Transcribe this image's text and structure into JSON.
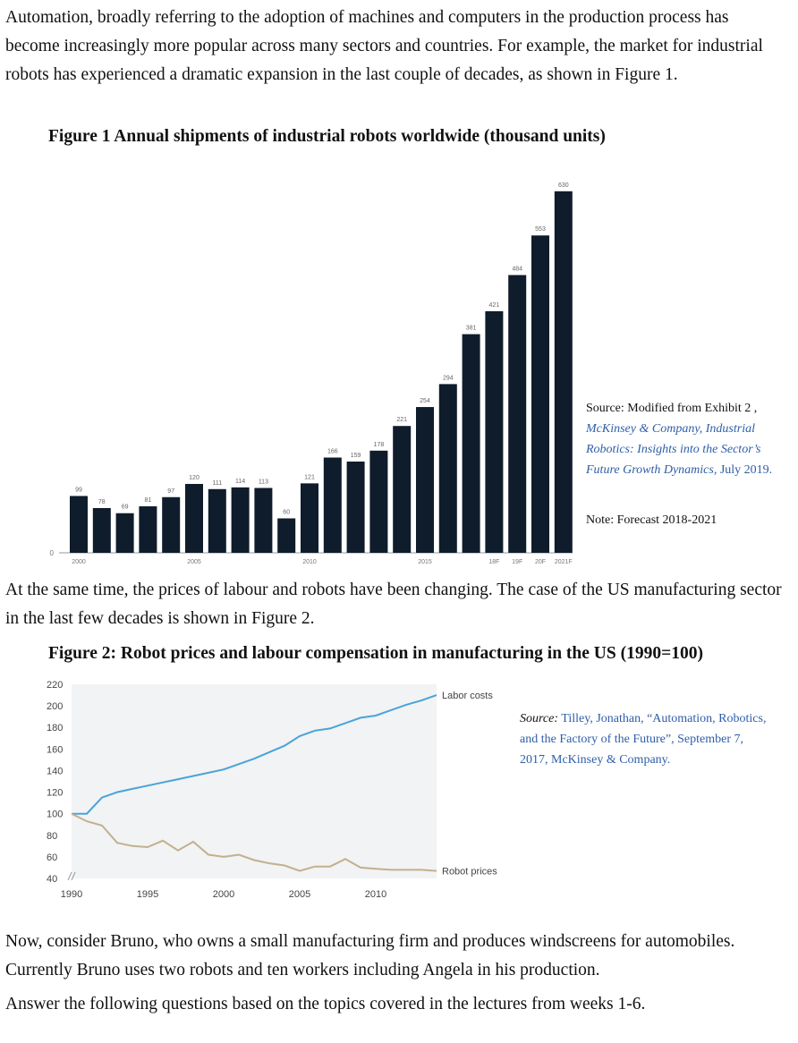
{
  "paragraphs": {
    "intro": "Automation, broadly referring to the adoption of machines and computers in the production process has become increasingly more popular across many sectors and countries. For example, the market for industrial robots has experienced a dramatic expansion in the last couple of decades, as shown in Figure 1.",
    "middle": "At the same time, the prices of labour and robots have been changing. The case of the US manufacturing sector in the last few decades is shown in Figure 2.",
    "bruno": "Now, consider Bruno, who owns a small manufacturing firm and produces windscreens for automobiles. Currently Bruno uses two robots and ten workers including Angela in his production.",
    "question": "Answer the following questions based on the topics covered in the lectures from weeks 1-6."
  },
  "figure1": {
    "title": "Figure 1 Annual shipments of industrial robots worldwide (thousand units)",
    "source_prefix": "Source: Modified from Exhibit 2 ,",
    "source_link": "McKinsey & Company, Industrial Robotics: Insights into the Sector’s Future Growth Dynamics,",
    "source_date": "July 2019.",
    "note": "Note: Forecast 2018-2021"
  },
  "figure2": {
    "title": "Figure 2: Robot prices and labour compensation in manufacturing in the US (1990=100)",
    "source_label": "Source:",
    "source_text": "Tilley, Jonathan, “Automation, Robotics, and the Factory of the Future”, September 7, 2017, McKinsey & Company."
  },
  "chart_data": [
    {
      "type": "bar",
      "title": "Figure 1 Annual shipments of industrial robots worldwide (thousand units)",
      "categories": [
        "2000",
        "2001",
        "2002",
        "2003",
        "2004",
        "2005",
        "2006",
        "2007",
        "2008",
        "2009",
        "2010",
        "2011",
        "2012",
        "2013",
        "2014",
        "2015",
        "2016",
        "2017",
        "18F",
        "19F",
        "20F",
        "2021F"
      ],
      "values": [
        99,
        78,
        69,
        81,
        97,
        120,
        111,
        114,
        113,
        60,
        121,
        166,
        159,
        178,
        221,
        254,
        294,
        381,
        421,
        484,
        553,
        630
      ],
      "x_tick_labels": [
        {
          "index": 0,
          "label": "2000"
        },
        {
          "index": 5,
          "label": "2005"
        },
        {
          "index": 10,
          "label": "2010"
        },
        {
          "index": 15,
          "label": "2015"
        },
        {
          "index": 18,
          "label": "18F"
        },
        {
          "index": 19,
          "label": "19F"
        },
        {
          "index": 20,
          "label": "20F"
        },
        {
          "index": 21,
          "label": "2021F"
        }
      ],
      "y_tick_labels": [
        "0"
      ],
      "ylim": [
        0,
        650
      ],
      "bar_color": "#0f1c2b",
      "grid": false
    },
    {
      "type": "line",
      "title": "Figure 2: Robot prices and labour compensation in manufacturing in the US (1990=100)",
      "x": [
        1990,
        1991,
        1992,
        1993,
        1994,
        1995,
        1996,
        1997,
        1998,
        1999,
        2000,
        2001,
        2002,
        2003,
        2004,
        2005,
        2006,
        2007,
        2008,
        2009,
        2010,
        2011,
        2012,
        2013,
        2014
      ],
      "series": [
        {
          "name": "Labor costs",
          "color": "#4aa3d8",
          "values": [
            100,
            100,
            115,
            120,
            123,
            126,
            129,
            132,
            135,
            138,
            141,
            146,
            151,
            157,
            163,
            172,
            177,
            179,
            184,
            189,
            191,
            196,
            201,
            205,
            210
          ]
        },
        {
          "name": "Robot prices",
          "color": "#c2b08e",
          "values": [
            100,
            93,
            89,
            73,
            70,
            69,
            75,
            66,
            74,
            62,
            60,
            62,
            57,
            54,
            52,
            47,
            51,
            51,
            58,
            50,
            49,
            48,
            48,
            48,
            47
          ]
        }
      ],
      "yticks": [
        40,
        60,
        80,
        100,
        120,
        140,
        160,
        180,
        200,
        220
      ],
      "xticks": [
        1990,
        1995,
        2000,
        2005,
        2010
      ],
      "ylim": [
        40,
        220
      ],
      "xlim": [
        1990,
        2014
      ],
      "grid": false,
      "background": "#f1f3f4",
      "legend": "line-end labels"
    }
  ]
}
